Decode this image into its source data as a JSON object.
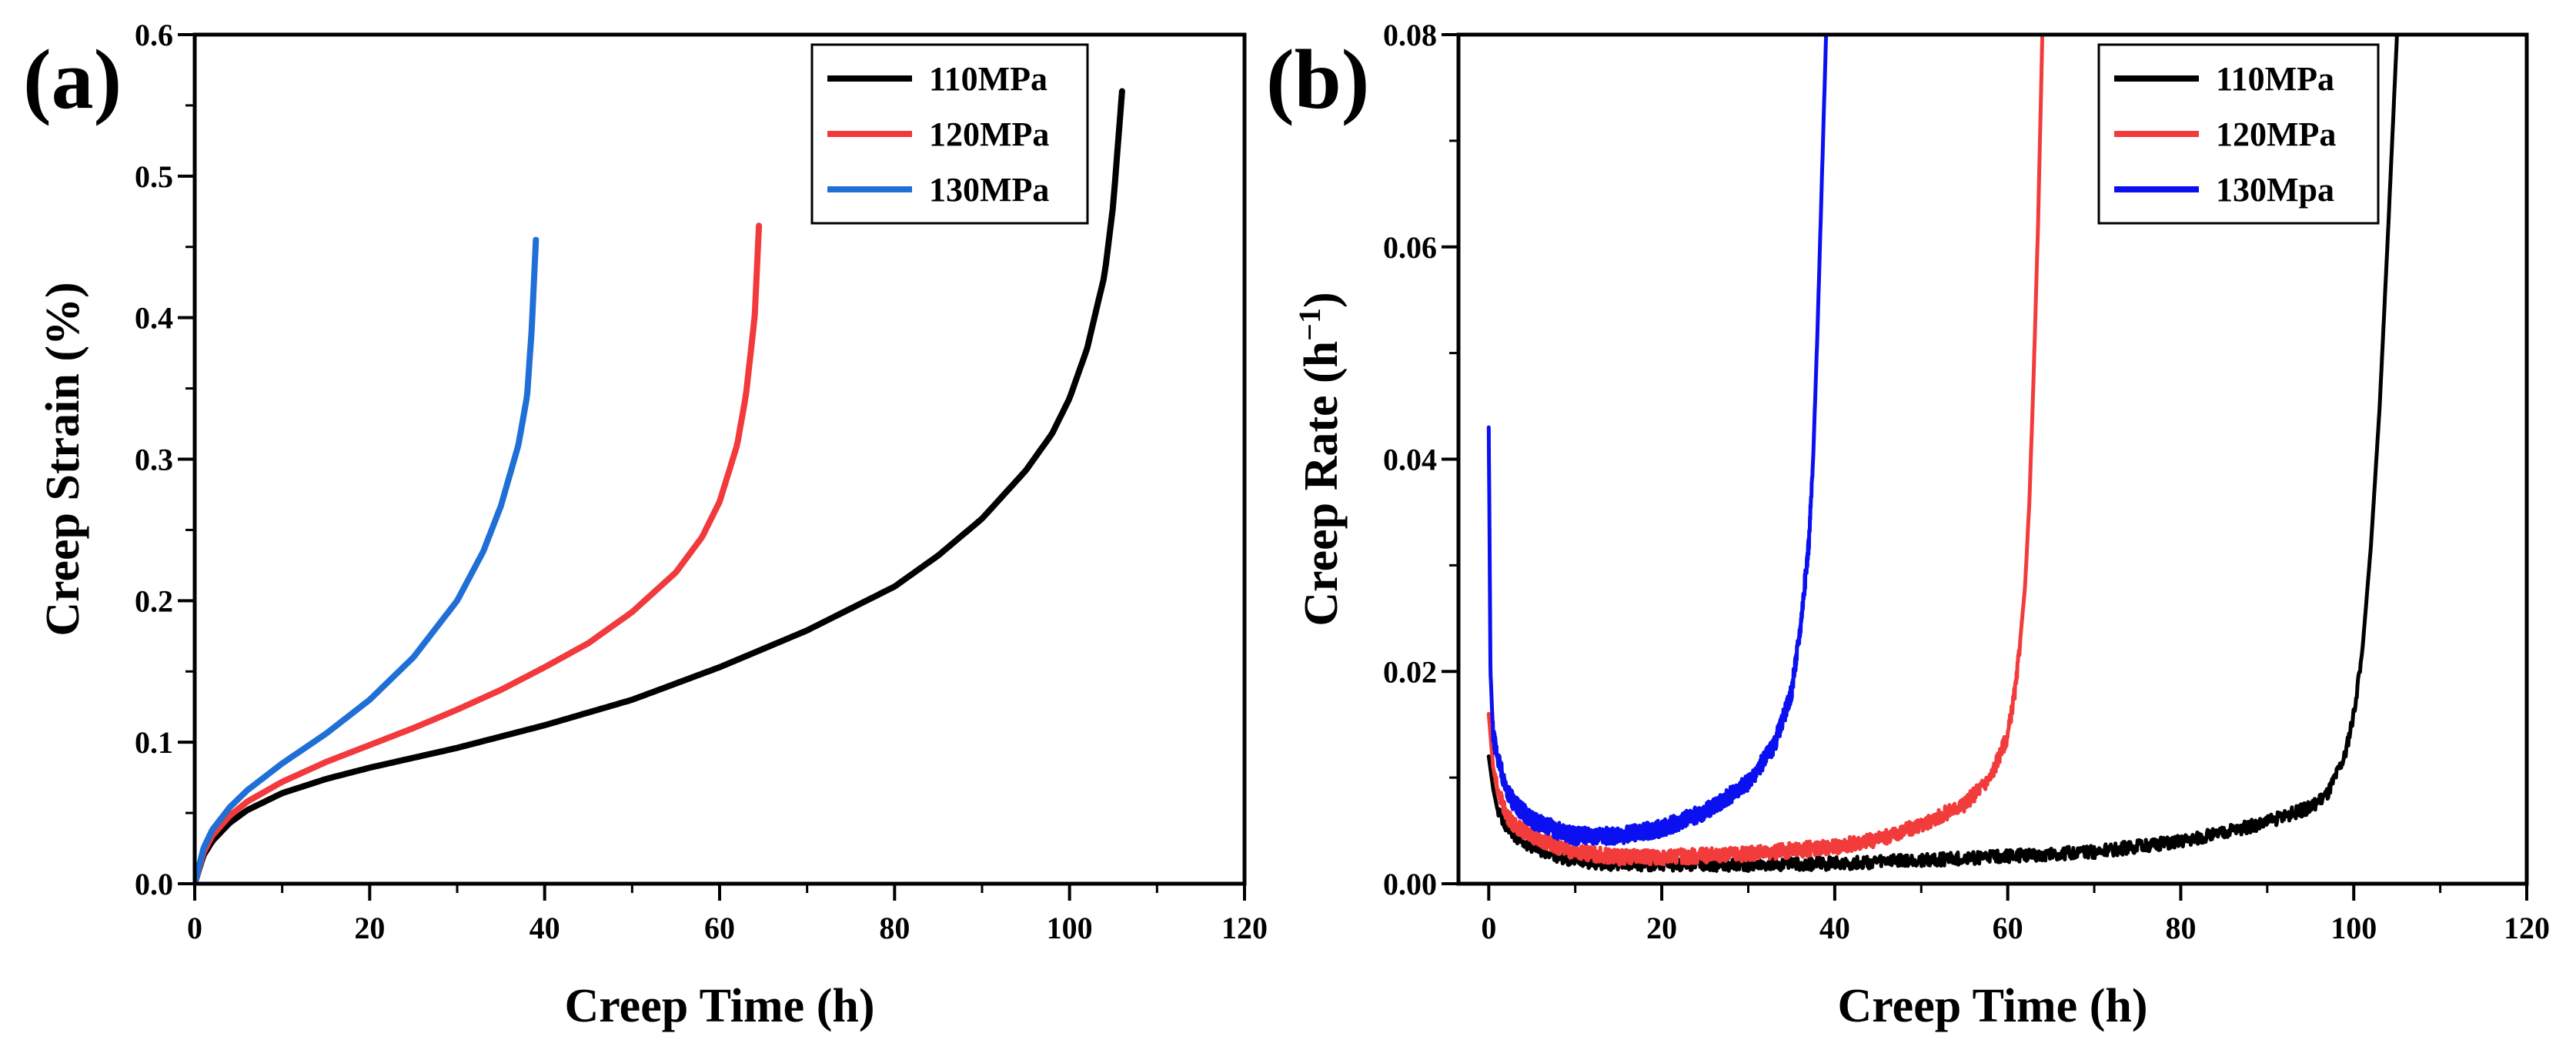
{
  "chart_data": [
    {
      "panel": "(a)",
      "type": "line",
      "xlabel": "Creep Time (h)",
      "ylabel": "Creep Strain (%)",
      "xlim": [
        0,
        120
      ],
      "ylim": [
        0,
        0.6
      ],
      "xticks": [
        0,
        20,
        40,
        60,
        80,
        100,
        120
      ],
      "yticks": [
        0.0,
        0.1,
        0.2,
        0.3,
        0.4,
        0.5,
        0.6
      ],
      "ytick_labels": [
        "0.0",
        "0.1",
        "0.2",
        "0.3",
        "0.4",
        "0.5",
        "0.6"
      ],
      "grid": false,
      "legend_position": "top-right",
      "series": [
        {
          "name": "110MPa",
          "color": "#000000",
          "x": [
            0,
            1,
            2,
            4,
            6,
            10,
            15,
            20,
            30,
            40,
            50,
            60,
            70,
            80,
            85,
            90,
            95,
            98,
            100,
            102,
            104,
            105,
            106
          ],
          "y": [
            0,
            0.02,
            0.03,
            0.043,
            0.052,
            0.064,
            0.074,
            0.082,
            0.096,
            0.112,
            0.13,
            0.153,
            0.179,
            0.21,
            0.232,
            0.258,
            0.292,
            0.318,
            0.343,
            0.378,
            0.43,
            0.48,
            0.56
          ]
        },
        {
          "name": "120MPa",
          "color": "#f2393c",
          "x": [
            0,
            1,
            2,
            4,
            6,
            10,
            15,
            20,
            25,
            30,
            35,
            40,
            45,
            50,
            55,
            58,
            60,
            62,
            63,
            64,
            64.5
          ],
          "y": [
            0,
            0.022,
            0.034,
            0.048,
            0.058,
            0.072,
            0.086,
            0.098,
            0.11,
            0.123,
            0.137,
            0.153,
            0.17,
            0.192,
            0.22,
            0.245,
            0.27,
            0.31,
            0.345,
            0.4,
            0.465
          ]
        },
        {
          "name": "130MPa",
          "color": "#1f6fd6",
          "x": [
            0,
            1,
            2,
            4,
            6,
            10,
            15,
            20,
            25,
            30,
            33,
            35,
            37,
            38,
            38.5,
            39
          ],
          "y": [
            0,
            0.025,
            0.038,
            0.054,
            0.066,
            0.085,
            0.106,
            0.13,
            0.16,
            0.2,
            0.235,
            0.267,
            0.31,
            0.345,
            0.39,
            0.455
          ]
        }
      ]
    },
    {
      "panel": "(b)",
      "type": "line",
      "xlabel": "Creep Time (h)",
      "ylabel": "Creep Rate (h",
      "ylabel_sup": "−1",
      "ylabel_end": ")",
      "xlim": [
        -3.5,
        120
      ],
      "ylim": [
        0,
        0.08
      ],
      "xticks": [
        0,
        20,
        40,
        60,
        80,
        100,
        120
      ],
      "yticks": [
        0.0,
        0.02,
        0.04,
        0.06,
        0.08
      ],
      "ytick_labels": [
        "0.00",
        "0.02",
        "0.04",
        "0.06",
        "0.08"
      ],
      "grid": false,
      "legend_position": "top-right",
      "series": [
        {
          "name": "110MPa",
          "color": "#000000",
          "noise": 0.0006,
          "x": [
            0,
            0.5,
            1,
            2,
            3,
            5,
            8,
            10,
            15,
            20,
            30,
            40,
            50,
            60,
            70,
            80,
            85,
            90,
            95,
            97,
            99,
            100,
            101,
            102,
            103,
            104,
            105
          ],
          "y": [
            0.012,
            0.009,
            0.007,
            0.0055,
            0.0045,
            0.0035,
            0.0025,
            0.0022,
            0.0018,
            0.0018,
            0.0018,
            0.0019,
            0.0022,
            0.0026,
            0.003,
            0.004,
            0.0048,
            0.0058,
            0.0072,
            0.0085,
            0.012,
            0.016,
            0.022,
            0.032,
            0.045,
            0.062,
            0.08
          ]
        },
        {
          "name": "120MPa",
          "color": "#f23b3b",
          "noise": 0.0007,
          "x": [
            0,
            0.5,
            1,
            2,
            3,
            5,
            8,
            10,
            15,
            20,
            30,
            40,
            45,
            50,
            55,
            58,
            60,
            61,
            62,
            62.5,
            63,
            63.5,
            64
          ],
          "y": [
            0.016,
            0.011,
            0.009,
            0.0065,
            0.0055,
            0.0045,
            0.0035,
            0.003,
            0.0025,
            0.0025,
            0.0028,
            0.0035,
            0.0042,
            0.0055,
            0.0075,
            0.01,
            0.014,
            0.019,
            0.028,
            0.036,
            0.048,
            0.062,
            0.08
          ]
        },
        {
          "name": "130Mpa",
          "color": "#0a10f0",
          "noise": 0.0008,
          "x": [
            0,
            0.2,
            0.5,
            1,
            2,
            3,
            5,
            8,
            10,
            15,
            20,
            25,
            30,
            33,
            35,
            36,
            37,
            37.5,
            38,
            38.5,
            39
          ],
          "y": [
            0.043,
            0.02,
            0.014,
            0.012,
            0.009,
            0.0075,
            0.006,
            0.005,
            0.0045,
            0.0045,
            0.0052,
            0.0068,
            0.0095,
            0.013,
            0.018,
            0.024,
            0.032,
            0.04,
            0.052,
            0.066,
            0.08
          ]
        }
      ]
    }
  ]
}
